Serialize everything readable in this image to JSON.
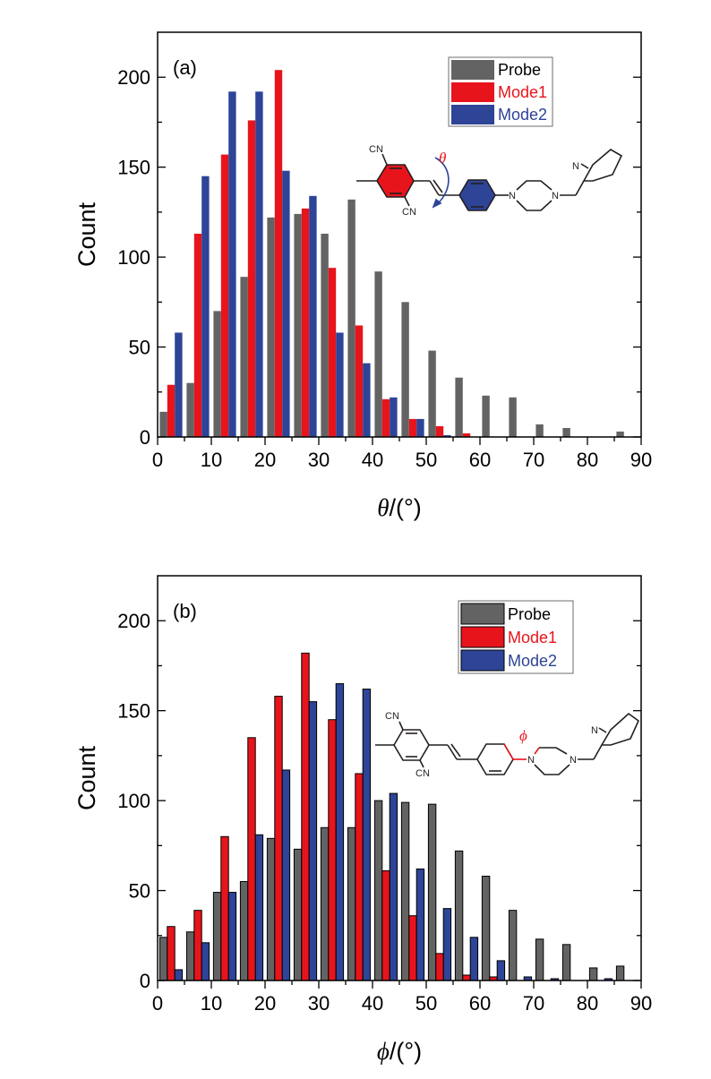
{
  "colors": {
    "probe": "#636363",
    "mode1": "#e8141c",
    "mode2": "#2d4497",
    "molecule_line": "#231f20",
    "axis": "#000000"
  },
  "chart_data": [
    {
      "type": "bar",
      "panel_label": "(a)",
      "title": "",
      "xlabel_symbol": "θ",
      "xlabel_unit": "/(°)",
      "ylabel": "Count",
      "xlim": [
        0,
        90
      ],
      "ylim": [
        0,
        225
      ],
      "bin_width": 5,
      "bar_outline": false,
      "x_ticks": [
        0,
        10,
        20,
        30,
        40,
        50,
        60,
        70,
        80,
        90
      ],
      "x_tick_labels": [
        "0",
        "10",
        "20",
        "30",
        "40",
        "50",
        "60",
        "70",
        "80",
        "90"
      ],
      "y_ticks": [
        0,
        50,
        100,
        150,
        200
      ],
      "y_tick_labels": [
        "0",
        "50",
        "100",
        "150",
        "200"
      ],
      "bin_starts": [
        0,
        5,
        10,
        15,
        20,
        25,
        30,
        35,
        40,
        45,
        50,
        55,
        60,
        65,
        70,
        75,
        80,
        85
      ],
      "series": [
        {
          "name": "Probe",
          "color_key": "probe",
          "values": [
            14,
            30,
            70,
            89,
            122,
            124,
            113,
            132,
            92,
            75,
            48,
            33,
            23,
            22,
            7,
            5,
            0,
            3
          ]
        },
        {
          "name": "Mode1",
          "color_key": "mode1",
          "values": [
            29,
            113,
            157,
            176,
            204,
            127,
            94,
            62,
            21,
            10,
            6,
            2,
            0,
            0,
            0,
            0,
            0,
            0
          ]
        },
        {
          "name": "Mode2",
          "color_key": "mode2",
          "values": [
            58,
            145,
            192,
            192,
            148,
            134,
            58,
            41,
            22,
            10,
            1,
            0,
            0,
            0,
            0,
            0,
            0,
            0
          ]
        }
      ],
      "legend": {
        "position": "top-right",
        "entries": [
          "Probe",
          "Mode1",
          "Mode2"
        ]
      },
      "inset": {
        "type": "molecule",
        "angle_label": "θ",
        "labels": [
          "CN",
          "CN",
          "N",
          "N",
          "N"
        ],
        "highlight": "rings"
      }
    },
    {
      "type": "bar",
      "panel_label": "(b)",
      "title": "",
      "xlabel_symbol": "ϕ",
      "xlabel_unit": "/(°)",
      "ylabel": "Count",
      "xlim": [
        0,
        90
      ],
      "ylim": [
        0,
        225
      ],
      "bin_width": 5,
      "bar_outline": true,
      "x_ticks": [
        0,
        10,
        20,
        30,
        40,
        50,
        60,
        70,
        80,
        90
      ],
      "x_tick_labels": [
        "0",
        "10",
        "20",
        "30",
        "40",
        "50",
        "60",
        "70",
        "80",
        "90"
      ],
      "y_ticks": [
        0,
        50,
        100,
        150,
        200
      ],
      "y_tick_labels": [
        "0",
        "50",
        "100",
        "150",
        "200"
      ],
      "bin_starts": [
        0,
        5,
        10,
        15,
        20,
        25,
        30,
        35,
        40,
        45,
        50,
        55,
        60,
        65,
        70,
        75,
        80,
        85
      ],
      "series": [
        {
          "name": "Probe",
          "color_key": "probe",
          "values": [
            24,
            27,
            49,
            55,
            79,
            73,
            85,
            85,
            100,
            99,
            98,
            72,
            58,
            39,
            23,
            20,
            7,
            8
          ]
        },
        {
          "name": "Mode1",
          "color_key": "mode1",
          "values": [
            30,
            39,
            80,
            135,
            158,
            182,
            145,
            115,
            61,
            36,
            15,
            3,
            2,
            0,
            0,
            0,
            0,
            0
          ]
        },
        {
          "name": "Mode2",
          "color_key": "mode2",
          "values": [
            6,
            21,
            49,
            81,
            117,
            155,
            165,
            162,
            104,
            62,
            40,
            24,
            11,
            2,
            1,
            0,
            1,
            0
          ]
        }
      ],
      "legend": {
        "position": "top-right",
        "entries": [
          "Probe",
          "Mode1",
          "Mode2"
        ]
      },
      "inset": {
        "type": "molecule",
        "angle_label": "ϕ",
        "labels": [
          "CN",
          "CN",
          "N",
          "N",
          "N"
        ],
        "highlight": "aryl-N bond"
      }
    }
  ]
}
